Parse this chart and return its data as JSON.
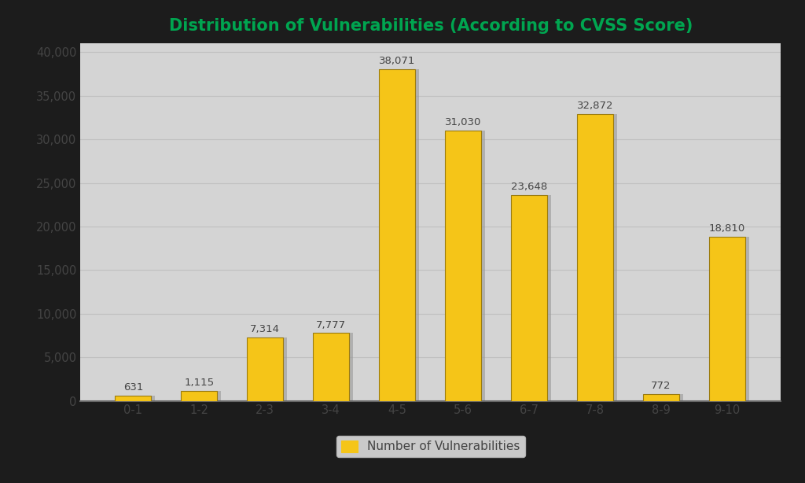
{
  "categories": [
    "0-1",
    "1-2",
    "2-3",
    "3-4",
    "4-5",
    "5-6",
    "6-7",
    "7-8",
    "8-9",
    "9-10"
  ],
  "values": [
    631,
    1115,
    7314,
    7777,
    38071,
    31030,
    23648,
    32872,
    772,
    18810
  ],
  "bar_color_face": "#F5C518",
  "bar_color_edge": "#9A7B10",
  "bar_shadow_color": "#888888",
  "title": "Distribution of Vulnerabilities (According to CVSS Score)",
  "title_color": "#00A550",
  "ylim": [
    0,
    40000
  ],
  "yticks": [
    0,
    5000,
    10000,
    15000,
    20000,
    25000,
    30000,
    35000,
    40000
  ],
  "legend_label": "Number of Vulnerabilities",
  "legend_color": "#F5C518",
  "background_color": "#CCCCCC",
  "plot_bg_color": "#D4D4D4",
  "tick_color": "#444444",
  "grid_color": "#C0C0C0",
  "border_color": "#111111",
  "title_fontsize": 15,
  "tick_fontsize": 10.5,
  "label_fontsize": 9.5
}
